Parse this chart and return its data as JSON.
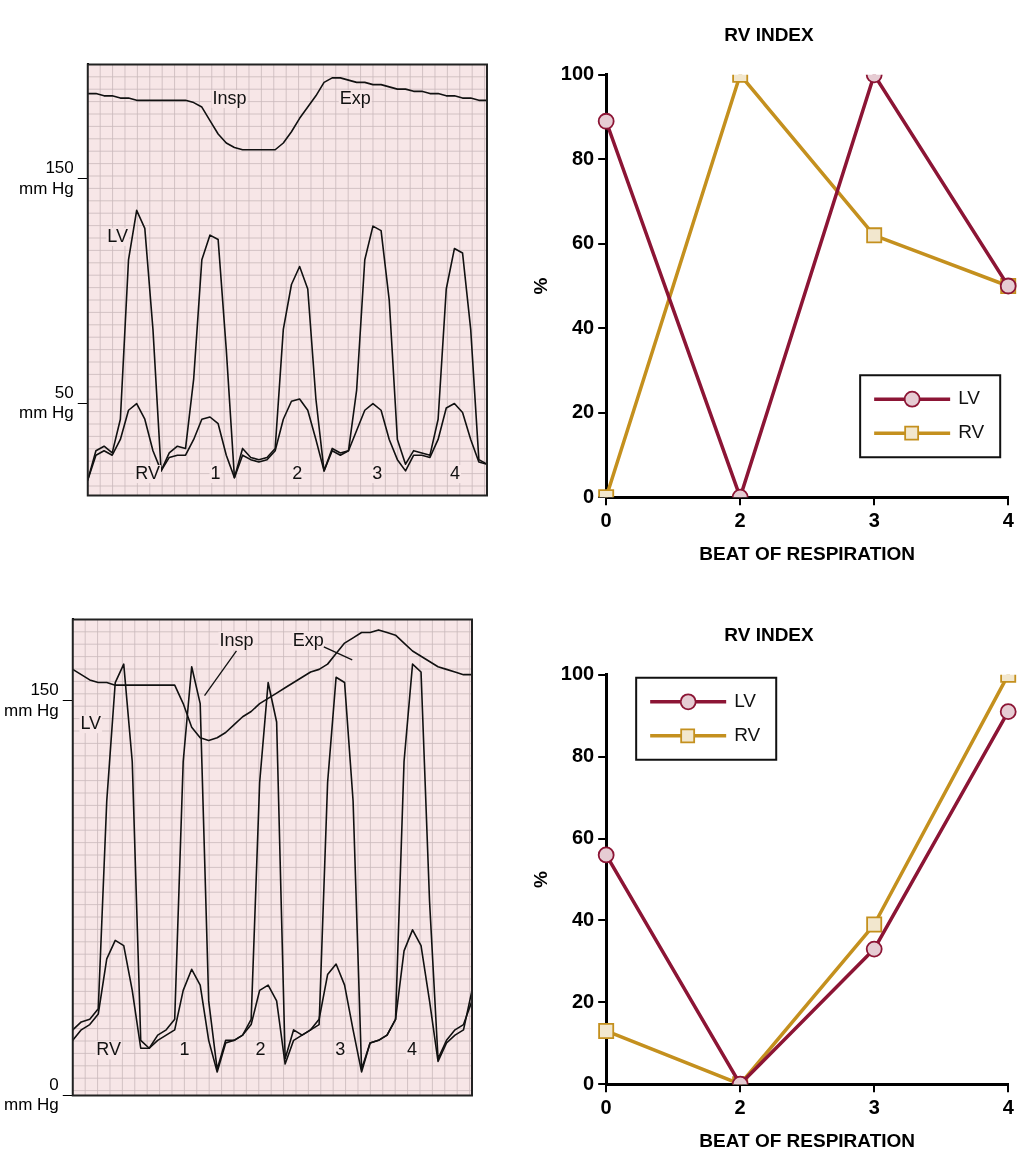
{
  "chart_data": [
    {
      "type": "line",
      "categories": [
        null,
        null,
        null,
        null,
        null,
        null,
        null,
        null,
        null,
        null,
        null,
        null,
        null,
        null,
        null,
        null,
        null,
        null,
        null,
        null,
        null,
        null,
        null,
        null,
        null,
        null,
        null,
        null,
        null,
        null,
        null,
        null,
        null,
        null,
        null,
        null,
        null,
        null,
        null,
        null,
        null,
        null,
        null,
        null,
        null,
        null,
        null,
        null,
        null,
        null
      ],
      "series": [
        {
          "color": "#111111",
          "values": [
            16,
            29,
            31,
            28,
            43,
            114,
            136,
            128,
            83,
            20,
            28,
            31,
            30,
            61,
            114,
            125,
            123,
            74,
            17,
            30,
            26,
            25,
            26,
            30,
            83,
            103,
            111,
            101,
            52,
            20,
            30,
            28,
            29,
            56,
            114,
            129,
            127,
            96,
            34,
            23,
            29,
            28,
            27,
            43,
            101,
            119,
            117,
            83,
            25,
            23
          ]
        },
        {
          "color": "#111111",
          "values": [
            16,
            27,
            29,
            27,
            34,
            47,
            50,
            43,
            29,
            20,
            26,
            27,
            27,
            34,
            43,
            44,
            41,
            27,
            17,
            27,
            25,
            24,
            25,
            29,
            43,
            51,
            52,
            47,
            34,
            20,
            29,
            27,
            29,
            38,
            47,
            50,
            47,
            34,
            25,
            20,
            27,
            27,
            26,
            34,
            48,
            50,
            46,
            34,
            24,
            23
          ]
        },
        {
          "color": "#111111",
          "values": [
            188,
            188,
            187,
            187,
            186,
            186,
            185,
            185,
            185,
            185,
            185,
            185,
            185,
            184,
            182,
            176,
            170,
            166,
            164,
            163,
            163,
            163,
            163,
            163,
            166,
            171,
            177,
            182,
            187,
            193,
            195,
            195,
            194,
            193,
            193,
            192,
            192,
            191,
            190,
            190,
            189,
            189,
            188,
            188,
            187,
            187,
            186,
            186,
            185,
            185
          ]
        }
      ],
      "ylim": [
        9,
        201
      ],
      "yticks": [
        {
          "value": 50,
          "label": "50 mm Hg"
        },
        {
          "value": 150,
          "label": "150 mm Hg"
        }
      ],
      "grid": true,
      "marker": "none",
      "tick_labels": "y",
      "annotations": [
        "Insp",
        "Exp",
        "LV",
        "RV",
        "1",
        "2",
        "3",
        "4"
      ]
    },
    {
      "type": "line",
      "title": "RV INDEX",
      "xlabel": "BEAT OF RESPIRATION",
      "ylabel": "%",
      "categories": [
        "0",
        "2",
        "3",
        "4"
      ],
      "series": [
        {
          "name": "LV",
          "color": "#8c1535",
          "marker": "circle",
          "values": [
            89,
            0,
            100,
            50
          ]
        },
        {
          "name": "RV",
          "color": "#c4901e",
          "marker": "square",
          "values": [
            0,
            100,
            62,
            50
          ]
        }
      ],
      "ylim": [
        0,
        100
      ],
      "yticks": [
        0,
        20,
        40,
        60,
        80,
        100
      ],
      "legend": "bottom right"
    },
    {
      "type": "line",
      "categories": [
        null,
        null,
        null,
        null,
        null,
        null,
        null,
        null,
        null,
        null,
        null,
        null,
        null,
        null,
        null,
        null,
        null,
        null,
        null,
        null,
        null,
        null,
        null,
        null,
        null,
        null,
        null,
        null,
        null,
        null,
        null,
        null,
        null,
        null,
        null,
        null,
        null,
        null,
        null,
        null,
        null,
        null,
        null,
        null,
        null,
        null,
        null,
        null
      ],
      "series": [
        {
          "color": "#111111",
          "values": [
            25,
            28,
            29,
            33,
            112,
            157,
            164,
            127,
            21,
            18,
            23,
            25,
            29,
            127,
            163,
            149,
            36,
            10,
            21,
            21,
            23,
            29,
            119,
            157,
            142,
            14,
            25,
            23,
            25,
            27,
            119,
            159,
            157,
            112,
            10,
            20,
            21,
            23,
            29,
            127,
            164,
            161,
            74,
            14,
            21,
            25,
            27,
            36
          ]
        },
        {
          "color": "#111111",
          "values": [
            21,
            25,
            27,
            31,
            52,
            59,
            57,
            40,
            18,
            18,
            21,
            23,
            25,
            40,
            48,
            42,
            21,
            9,
            20,
            21,
            23,
            27,
            40,
            42,
            36,
            12,
            21,
            23,
            25,
            29,
            46,
            50,
            42,
            25,
            9,
            20,
            21,
            23,
            29,
            55,
            63,
            57,
            36,
            13,
            20,
            23,
            25,
            40
          ]
        },
        {
          "color": "#111111",
          "values": [
            162,
            160,
            158,
            157,
            157,
            156,
            156,
            156,
            156,
            156,
            156,
            156,
            156,
            149,
            140,
            136,
            135,
            136,
            138,
            141,
            144,
            146,
            149,
            151,
            153,
            155,
            157,
            159,
            161,
            162,
            164,
            168,
            172,
            174,
            176,
            176,
            177,
            176,
            175,
            172,
            169,
            167,
            165,
            163,
            162,
            161,
            160,
            160
          ]
        }
      ],
      "ylim": [
        0,
        181
      ],
      "yticks": [
        {
          "value": 0,
          "label": "0 mm Hg"
        },
        {
          "value": 150,
          "label": "150 mm Hg"
        }
      ],
      "grid": true,
      "marker": "none",
      "tick_labels": "y",
      "annotations": [
        "Exp",
        "Insp",
        "LV",
        "RV",
        "1",
        "2",
        "3",
        "4"
      ]
    },
    {
      "type": "line",
      "title": "RV INDEX",
      "xlabel": "BEAT OF RESPIRATION",
      "ylabel": "%",
      "categories": [
        "0",
        "2",
        "3",
        "4"
      ],
      "series": [
        {
          "name": "LV",
          "color": "#8c1535",
          "marker": "circle",
          "values": [
            56,
            0,
            33,
            91
          ]
        },
        {
          "name": "RV",
          "color": "#c4901e",
          "marker": "square",
          "values": [
            13,
            0,
            39,
            100
          ]
        }
      ],
      "ylim": [
        0,
        100
      ],
      "yticks": [
        0,
        20,
        40,
        60,
        80,
        100
      ],
      "legend": "top left"
    }
  ]
}
